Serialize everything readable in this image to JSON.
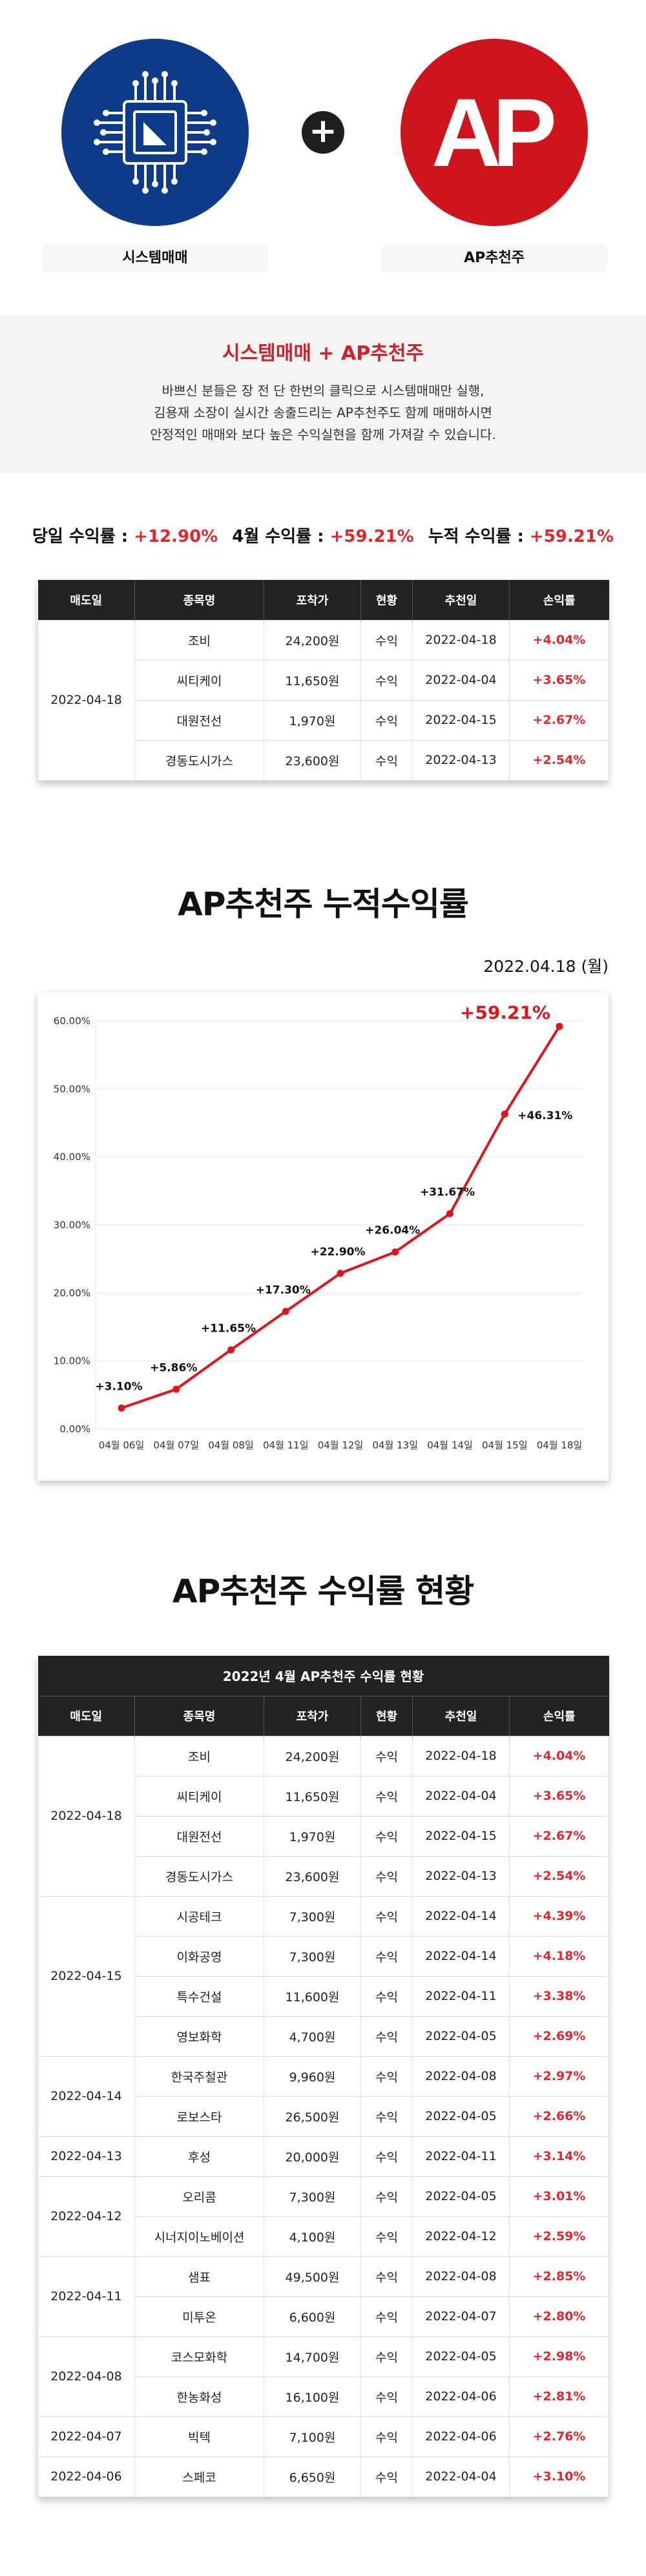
{
  "logos": {
    "left_label": "시스템매매",
    "left_icon": "chip-icon",
    "right_label": "AP추천주",
    "right_logo_text": "AP",
    "plus": "+"
  },
  "intro": {
    "title": "시스템매매 + AP추천주",
    "lines": [
      "바쁘신 분들은 장 전 단 한번의 클릭으로 시스템매매만 실행,",
      "김용재 소장이 실시간 송출드리는 AP추천주도 함께 매매하시면",
      "안정적인 매매와 보다 높은 수익실현을 함께 가져갈 수 있습니다."
    ]
  },
  "summary": [
    {
      "label": "당일 수익률 : ",
      "value": "+12.90%"
    },
    {
      "label": "4월 수익률 : ",
      "value": "+59.21%"
    },
    {
      "label": "누적 수익률 : ",
      "value": "+59.21%"
    }
  ],
  "columns": [
    "매도일",
    "종목명",
    "포착가",
    "현황",
    "추천일",
    "손익률"
  ],
  "top_table": [
    {
      "date": "2022-04-18",
      "rows": [
        [
          "조비",
          "24,200원",
          "수익",
          "2022-04-18",
          "+4.04%"
        ],
        [
          "씨티케이",
          "11,650원",
          "수익",
          "2022-04-04",
          "+3.65%"
        ],
        [
          "대원전선",
          "1,970원",
          "수익",
          "2022-04-15",
          "+2.67%"
        ],
        [
          "경동도시가스",
          "23,600원",
          "수익",
          "2022-04-13",
          "+2.54%"
        ]
      ]
    }
  ],
  "chart_section": {
    "title": "AP추천주 누적수익률",
    "date": "2022.04.18 (월)"
  },
  "chart_data": {
    "type": "line",
    "title": "AP추천주 누적수익률",
    "x": [
      "04월 06일",
      "04월 07일",
      "04월 08일",
      "04월 11일",
      "04월 12일",
      "04월 13일",
      "04월 14일",
      "04월 15일",
      "04월 18일"
    ],
    "values": [
      3.1,
      5.86,
      11.65,
      17.3,
      22.9,
      26.04,
      31.67,
      46.31,
      59.21
    ],
    "data_labels": [
      "+3.10%",
      "+5.86%",
      "+11.65%",
      "+17.30%",
      "+22.90%",
      "+26.04%",
      "+31.67%",
      "+46.31%",
      "+59.21%"
    ],
    "y_ticks": [
      "0.00%",
      "10.00%",
      "20.00%",
      "30.00%",
      "40.00%",
      "50.00%",
      "60.00%"
    ],
    "ylim": [
      0,
      60
    ],
    "xlabel": "",
    "ylabel": "",
    "grid": true,
    "color": "#e3131b"
  },
  "status_section": {
    "title": "AP추천주 수익률 현황",
    "table_caption": "2022년 4월 AP추천주 수익률 현황"
  },
  "full_table": [
    {
      "date": "2022-04-18",
      "rows": [
        [
          "조비",
          "24,200원",
          "수익",
          "2022-04-18",
          "+4.04%"
        ],
        [
          "씨티케이",
          "11,650원",
          "수익",
          "2022-04-04",
          "+3.65%"
        ],
        [
          "대원전선",
          "1,970원",
          "수익",
          "2022-04-15",
          "+2.67%"
        ],
        [
          "경동도시가스",
          "23,600원",
          "수익",
          "2022-04-13",
          "+2.54%"
        ]
      ]
    },
    {
      "date": "2022-04-15",
      "rows": [
        [
          "시공테크",
          "7,300원",
          "수익",
          "2022-04-14",
          "+4.39%"
        ],
        [
          "이화공영",
          "7,300원",
          "수익",
          "2022-04-14",
          "+4.18%"
        ],
        [
          "특수건설",
          "11,600원",
          "수익",
          "2022-04-11",
          "+3.38%"
        ],
        [
          "영보화학",
          "4,700원",
          "수익",
          "2022-04-05",
          "+2.69%"
        ]
      ]
    },
    {
      "date": "2022-04-14",
      "rows": [
        [
          "한국주철관",
          "9,960원",
          "수익",
          "2022-04-08",
          "+2.97%"
        ],
        [
          "로보스타",
          "26,500원",
          "수익",
          "2022-04-05",
          "+2.66%"
        ]
      ]
    },
    {
      "date": "2022-04-13",
      "rows": [
        [
          "후성",
          "20,000원",
          "수익",
          "2022-04-11",
          "+3.14%"
        ]
      ]
    },
    {
      "date": "2022-04-12",
      "rows": [
        [
          "오리콤",
          "7,300원",
          "수익",
          "2022-04-05",
          "+3.01%"
        ],
        [
          "시너지이노베이션",
          "4,100원",
          "수익",
          "2022-04-12",
          "+2.59%"
        ]
      ]
    },
    {
      "date": "2022-04-11",
      "rows": [
        [
          "샘표",
          "49,500원",
          "수익",
          "2022-04-08",
          "+2.85%"
        ],
        [
          "미투온",
          "6,600원",
          "수익",
          "2022-04-07",
          "+2.80%"
        ]
      ]
    },
    {
      "date": "2022-04-08",
      "rows": [
        [
          "코스모화학",
          "14,700원",
          "수익",
          "2022-04-05",
          "+2.98%"
        ],
        [
          "한농화성",
          "16,100원",
          "수익",
          "2022-04-06",
          "+2.81%"
        ]
      ]
    },
    {
      "date": "2022-04-07",
      "rows": [
        [
          "빅텍",
          "7,100원",
          "수익",
          "2022-04-06",
          "+2.76%"
        ]
      ]
    },
    {
      "date": "2022-04-06",
      "rows": [
        [
          "스페코",
          "6,650원",
          "수익",
          "2022-04-04",
          "+3.10%"
        ]
      ]
    }
  ]
}
